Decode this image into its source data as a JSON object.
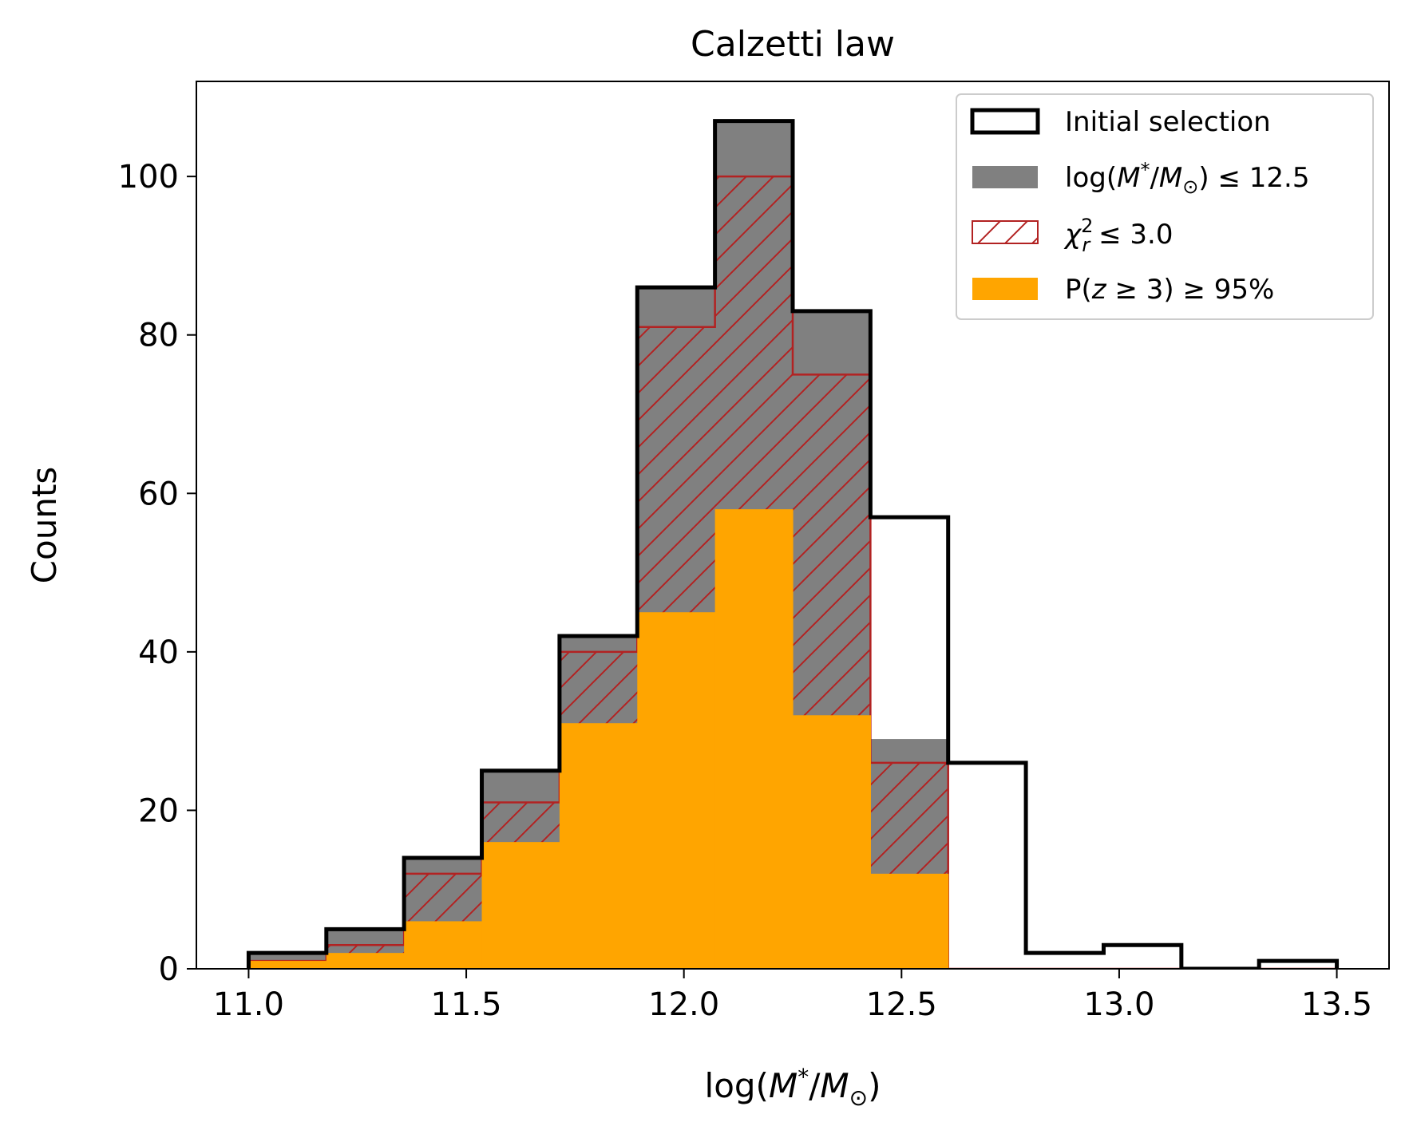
{
  "chart_data": {
    "type": "histogram",
    "title": "Calzetti law",
    "xlabel": "log(M*/M⊙)",
    "ylabel": "Counts",
    "xlim": [
      10.88,
      13.62
    ],
    "ylim": [
      0,
      112
    ],
    "xticks": [
      11.0,
      11.5,
      12.0,
      12.5,
      13.0,
      13.5
    ],
    "xtick_labels": [
      "11.0",
      "11.5",
      "12.0",
      "12.5",
      "13.0",
      "13.5"
    ],
    "yticks": [
      0,
      20,
      40,
      60,
      80,
      100
    ],
    "ytick_labels": [
      "0",
      "20",
      "40",
      "60",
      "80",
      "100"
    ],
    "bin_edges": [
      11.0,
      11.1786,
      11.3571,
      11.5357,
      11.7143,
      11.8929,
      12.0714,
      12.25,
      12.4286,
      12.6071,
      12.7857,
      12.9643,
      13.1429,
      13.3214,
      13.5
    ],
    "series": [
      {
        "name": "Initial selection",
        "style": "step",
        "color": "#000000",
        "values": [
          2,
          5,
          14,
          25,
          42,
          86,
          107,
          83,
          57,
          26,
          2,
          3,
          0,
          1
        ]
      },
      {
        "name": "log(M*/M⊙) ≤ 12.5",
        "style": "filled",
        "color": "#808080",
        "values": [
          2,
          5,
          14,
          25,
          42,
          86,
          107,
          83,
          29,
          0,
          0,
          0,
          0,
          0
        ]
      },
      {
        "name": "χ²r ≤ 3.0",
        "style": "hatched",
        "color": "#b22222",
        "values": [
          1,
          3,
          12,
          21,
          40,
          81,
          100,
          75,
          26,
          0,
          0,
          0,
          0,
          0
        ]
      },
      {
        "name": "P(z ≥ 3) ≥ 95%",
        "style": "filled",
        "color": "#ffa500",
        "values": [
          1,
          2,
          6,
          16,
          31,
          45,
          58,
          32,
          12,
          0,
          0,
          0,
          0,
          0
        ]
      }
    ],
    "legend": {
      "location": "top-right",
      "entries": [
        {
          "text": "Initial selection"
        },
        {
          "text": "log(M*/M⊙) ≤ 12.5"
        },
        {
          "text": "χ²r ≤ 3.0"
        },
        {
          "text": "P(z ≥ 3) ≥ 95%"
        }
      ]
    }
  }
}
